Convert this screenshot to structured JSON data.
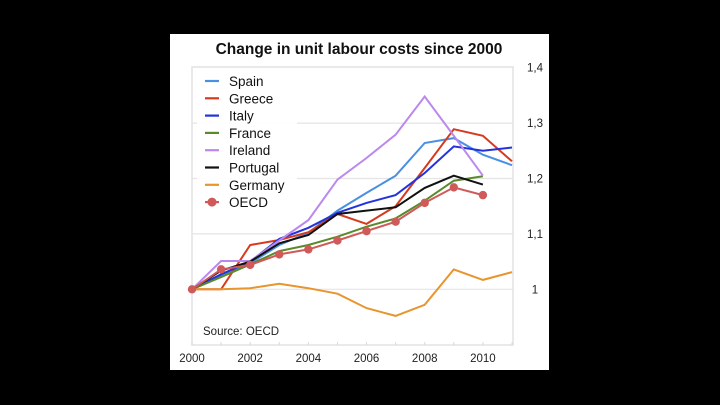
{
  "chart_data": {
    "type": "line",
    "title": "Change in unit labour costs since 2000",
    "xlabel": "",
    "ylabel": "",
    "x": [
      2000,
      2001,
      2002,
      2003,
      2004,
      2005,
      2006,
      2007,
      2008,
      2009,
      2010,
      2011
    ],
    "x_tick_labels": [
      "2000",
      "2002",
      "2004",
      "2006",
      "2008",
      "2010"
    ],
    "x_ticks": [
      2000,
      2002,
      2004,
      2006,
      2008,
      2010
    ],
    "xlim": [
      2000,
      2011
    ],
    "y_tick_labels": [
      "1",
      "1,1",
      "1,2",
      "1,3",
      "1,4"
    ],
    "y_ticks": [
      1.0,
      1.1,
      1.2,
      1.3,
      1.4
    ],
    "ylim": [
      0.9,
      1.4
    ],
    "y_axis_side": "right",
    "grid": true,
    "legend_position": "top-left",
    "annotation": "Source: OECD",
    "series": [
      {
        "name": "Spain",
        "color": "#4a90e2",
        "marker": false,
        "values": [
          1.0,
          1.024,
          1.047,
          1.08,
          1.102,
          1.142,
          1.174,
          1.205,
          1.264,
          1.273,
          1.243,
          1.224
        ]
      },
      {
        "name": "Greece",
        "color": "#d63a1e",
        "marker": false,
        "values": [
          1.0,
          1.0,
          1.08,
          1.089,
          1.103,
          1.136,
          1.118,
          1.15,
          1.219,
          1.289,
          1.277,
          1.231
        ]
      },
      {
        "name": "Italy",
        "color": "#2233dd",
        "marker": false,
        "values": [
          1.0,
          1.027,
          1.05,
          1.091,
          1.111,
          1.138,
          1.156,
          1.17,
          1.21,
          1.258,
          1.25,
          1.256
        ]
      },
      {
        "name": "France",
        "color": "#5a8a2a",
        "marker": false,
        "values": [
          1.0,
          1.022,
          1.045,
          1.069,
          1.08,
          1.095,
          1.113,
          1.128,
          1.16,
          1.196,
          1.204,
          null
        ]
      },
      {
        "name": "Ireland",
        "color": "#bb88ee",
        "marker": false,
        "values": [
          1.0,
          1.051,
          1.051,
          1.088,
          1.125,
          1.198,
          1.237,
          1.279,
          1.348,
          1.277,
          1.205,
          null
        ]
      },
      {
        "name": "Portugal",
        "color": "#111111",
        "marker": false,
        "values": [
          1.0,
          1.034,
          1.05,
          1.083,
          1.098,
          1.136,
          1.142,
          1.148,
          1.183,
          1.205,
          1.189,
          null
        ]
      },
      {
        "name": "Germany",
        "color": "#e8952e",
        "marker": false,
        "values": [
          1.0,
          1.0,
          1.002,
          1.01,
          1.002,
          0.992,
          0.966,
          0.952,
          0.972,
          1.036,
          1.017,
          1.031
        ]
      },
      {
        "name": "OECD",
        "color": "#d05a5a",
        "marker": true,
        "values": [
          1.0,
          1.036,
          1.044,
          1.063,
          1.072,
          1.088,
          1.105,
          1.122,
          1.156,
          1.184,
          1.17,
          null
        ]
      }
    ]
  }
}
